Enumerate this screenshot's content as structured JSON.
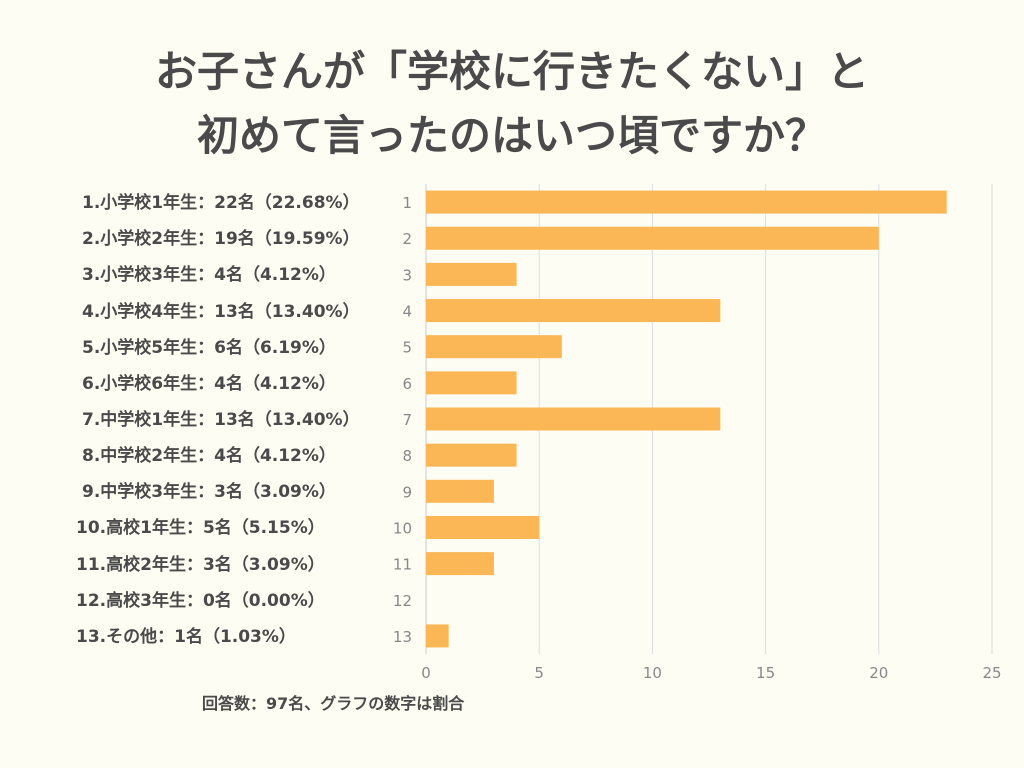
{
  "title_line1": "お子さんが「学校に行きたくない」と",
  "title_line2": "初めて言ったのはいつ頃ですか？",
  "note": "回答数：97名、グラフの数字は割合",
  "colors": {
    "bar": "#fbb755",
    "grid": "#dddddd",
    "text": "#4a4a4a",
    "tick": "#888888"
  },
  "chart_data": {
    "type": "bar",
    "orientation": "horizontal",
    "title": "お子さんが「学校に行きたくない」と初めて言ったのはいつ頃ですか？",
    "categories": [
      "1",
      "2",
      "3",
      "4",
      "5",
      "6",
      "7",
      "8",
      "9",
      "10",
      "11",
      "12",
      "13"
    ],
    "category_labels": [
      "1.小学校1年生：22名（22.68%）",
      "2.小学校2年生：19名（19.59%）",
      "3.小学校3年生：4名（4.12%）",
      "4.小学校4年生：13名（13.40%）",
      "5.小学校5年生：6名（6.19%）",
      "6.小学校6年生：4名（4.12%）",
      "7.中学校1年生：13名（13.40%）",
      "8.中学校2年生：4名（4.12%）",
      "9.中学校3年生：3名（3.09%）",
      "10.高校1年生：5名（5.15%）",
      "11.高校2年生：3名（3.09%）",
      "12.高校3年生：0名（0.00%）",
      "13.その他：1名（1.03%）"
    ],
    "values": [
      23,
      20,
      4,
      13,
      6,
      4,
      13,
      4,
      3,
      5,
      3,
      0,
      1
    ],
    "xlim": [
      0,
      25
    ],
    "xticks": [
      "0",
      "5",
      "10",
      "15",
      "20",
      "25"
    ],
    "xlabel": "",
    "ylabel": "",
    "grid": true
  }
}
